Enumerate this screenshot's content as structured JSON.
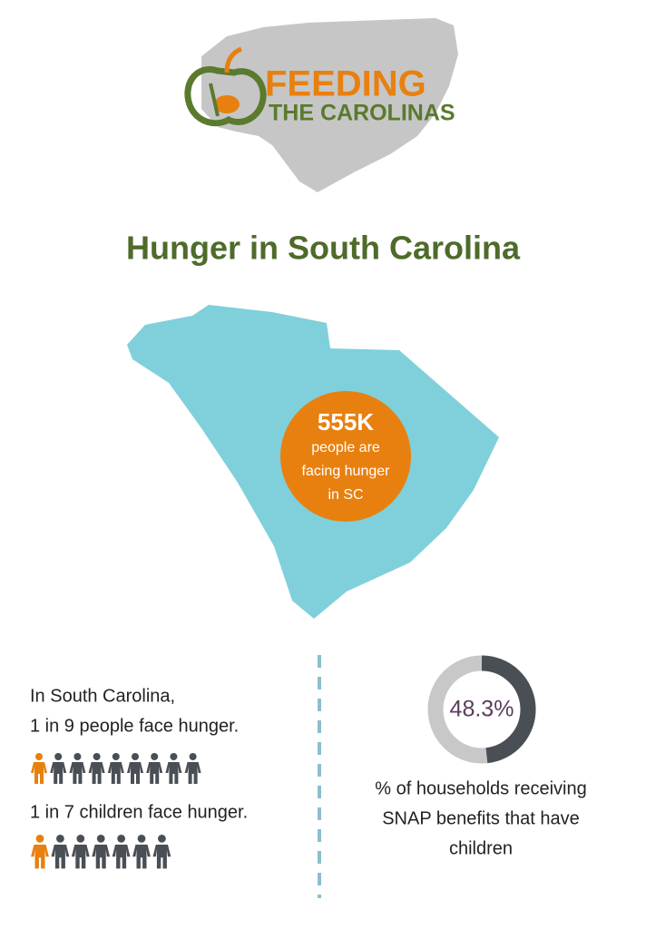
{
  "logo": {
    "line1": "FEEDING",
    "line2": "THE CAROLINAS"
  },
  "title": "Hunger in South Carolina",
  "map_callout": {
    "value": "555K",
    "lines": [
      "people are",
      "facing hunger",
      "in SC"
    ]
  },
  "people": {
    "intro": "In South Carolina,",
    "adults": {
      "text": "1 in 9 people face hunger.",
      "count": 9,
      "highlighted": 1
    },
    "children": {
      "text": "1 in 7 children face hunger.",
      "count": 7,
      "highlighted": 1
    }
  },
  "snap": {
    "percent": 48.3,
    "label": "48.3%",
    "caption": [
      "% of households receiving",
      "SNAP benefits that have",
      "children"
    ]
  }
}
